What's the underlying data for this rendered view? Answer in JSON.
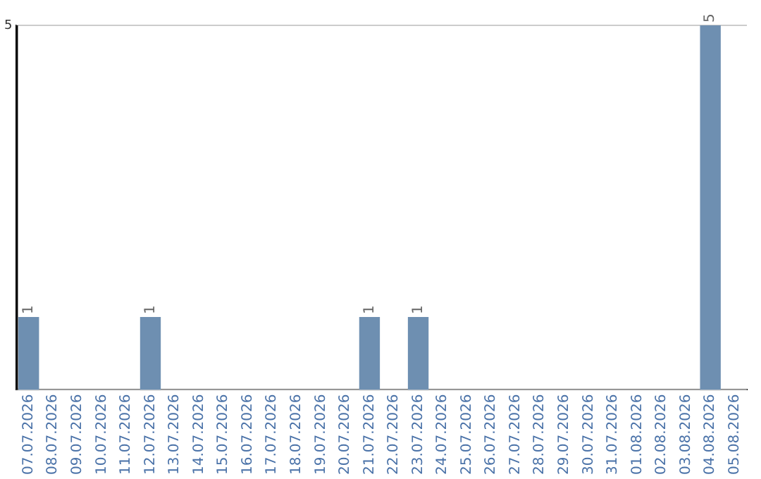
{
  "chart_data": {
    "type": "bar",
    "categories": [
      "07.07.2026",
      "08.07.2026",
      "09.07.2026",
      "10.07.2026",
      "11.07.2026",
      "12.07.2026",
      "13.07.2026",
      "14.07.2026",
      "15.07.2026",
      "16.07.2026",
      "17.07.2026",
      "18.07.2026",
      "19.07.2026",
      "20.07.2026",
      "21.07.2026",
      "22.07.2026",
      "23.07.2026",
      "24.07.2026",
      "25.07.2026",
      "26.07.2026",
      "27.07.2026",
      "28.07.2026",
      "29.07.2026",
      "30.07.2026",
      "31.07.2026",
      "01.08.2026",
      "02.08.2026",
      "03.08.2026",
      "04.08.2026",
      "05.08.2026"
    ],
    "values": [
      1,
      0,
      0,
      0,
      0,
      1,
      0,
      0,
      0,
      0,
      0,
      0,
      0,
      0,
      1,
      0,
      1,
      0,
      0,
      0,
      0,
      0,
      0,
      0,
      0,
      0,
      0,
      0,
      5,
      0
    ],
    "value_labels": [
      "1",
      null,
      null,
      null,
      null,
      "1",
      null,
      null,
      null,
      null,
      null,
      null,
      null,
      null,
      "1",
      null,
      "1",
      null,
      null,
      null,
      null,
      null,
      null,
      null,
      null,
      null,
      null,
      null,
      "5",
      null
    ],
    "color": "#6e8fb1",
    "ylim": [
      0,
      5
    ],
    "yticks": [
      {
        "value": 0,
        "label": null
      },
      5
    ],
    "grid": "y",
    "legend": false
  }
}
